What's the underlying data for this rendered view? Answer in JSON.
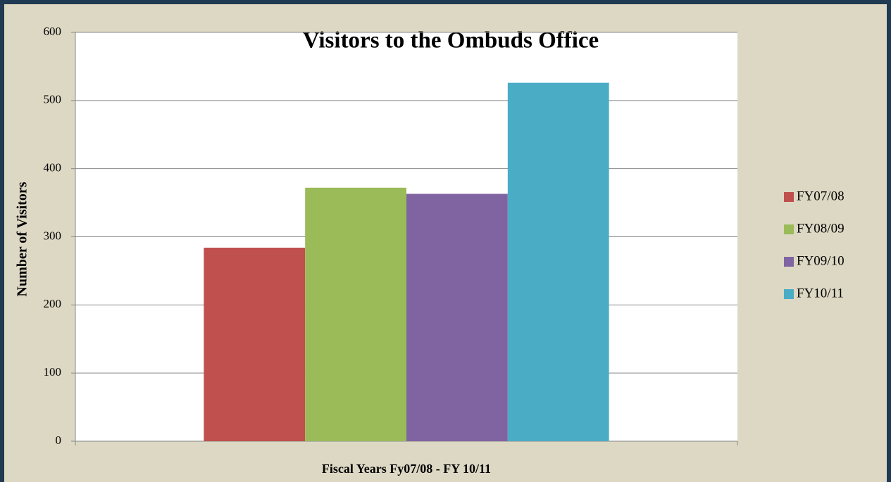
{
  "chart_data": {
    "type": "bar",
    "title": "Visitors to the Ombuds Office",
    "x_label": "Fiscal Years Fy07/08 - FY 10/11",
    "y_label": "Number of Visitors",
    "categories": [
      null
    ],
    "series": [
      {
        "name": "FY07/08",
        "color": "#c0504d",
        "values": [
          284
        ]
      },
      {
        "name": "FY08/09",
        "color": "#9bbb59",
        "values": [
          372
        ]
      },
      {
        "name": "FY09/10",
        "color": "#8064a2",
        "values": [
          363
        ]
      },
      {
        "name": "FY10/11",
        "color": "#4bacc6",
        "values": [
          526
        ]
      }
    ],
    "ylim": [
      0,
      600
    ],
    "yticks": [
      0,
      100,
      200,
      300,
      400,
      500,
      600
    ],
    "grid": true,
    "legend": "right"
  }
}
